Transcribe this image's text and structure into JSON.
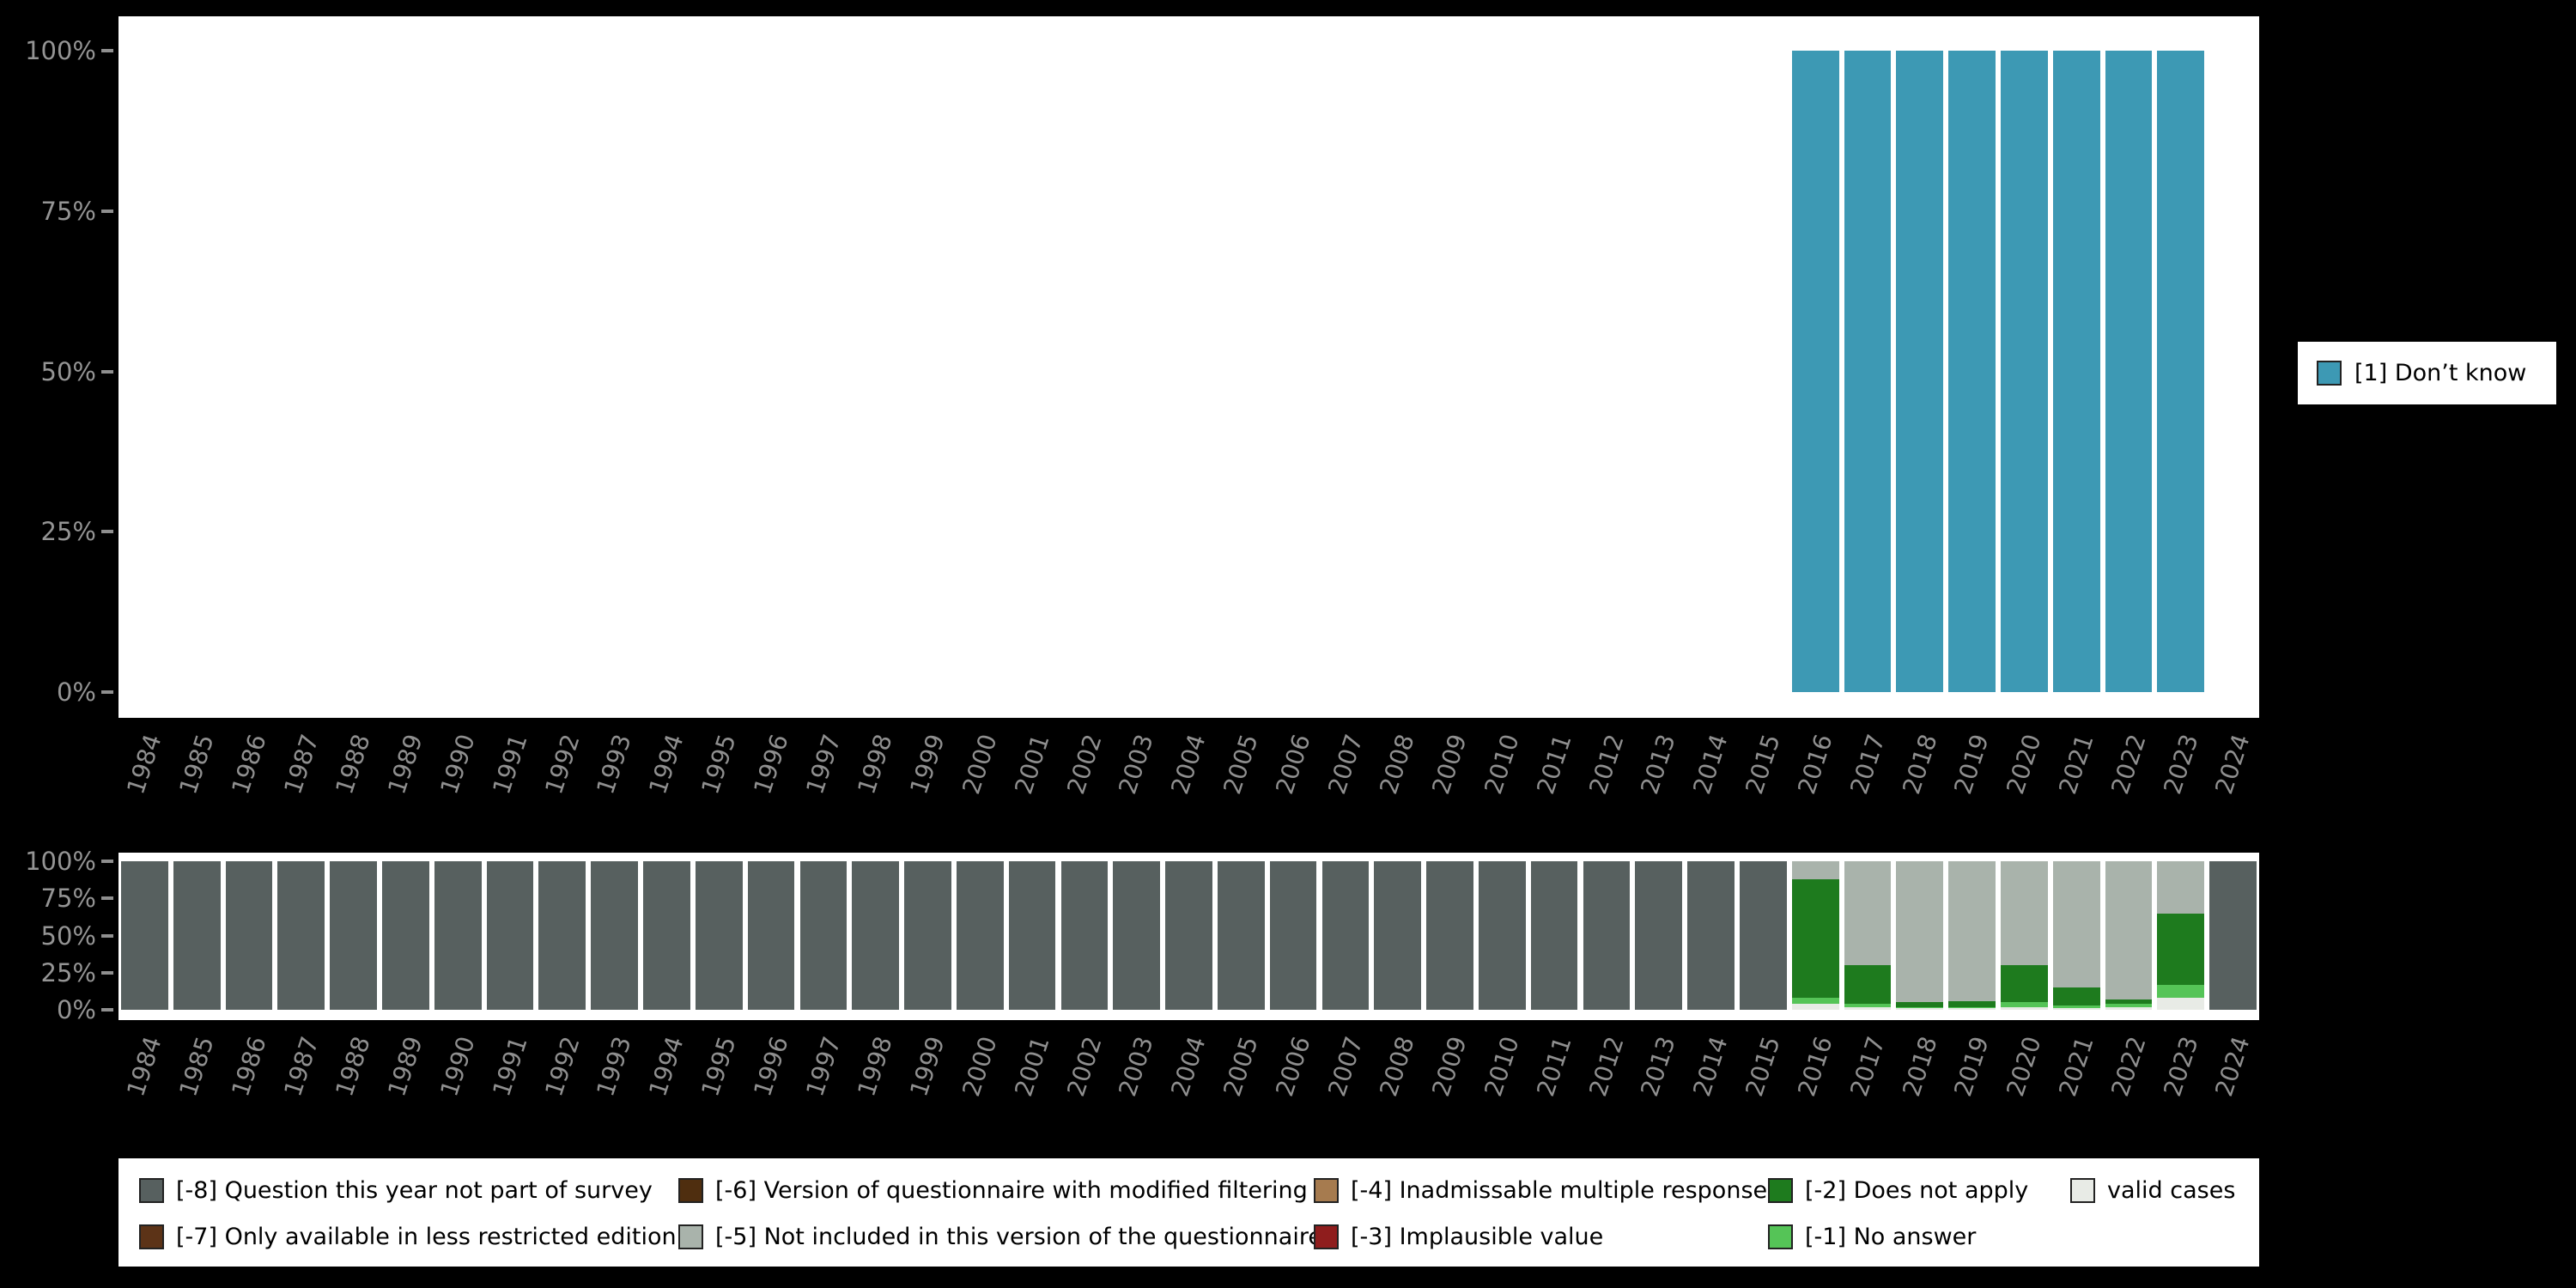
{
  "page": {
    "background": "#000000",
    "plot_background": "#ffffff"
  },
  "right_legend": {
    "items": [
      {
        "label": "[1] Don’t know",
        "color": "#3D99B4"
      }
    ]
  },
  "bottom_legend": {
    "columns": [
      {
        "items": [
          {
            "label": "[-8] Question this year not part of survey",
            "color": "#57605F"
          },
          {
            "label": "[-7] Only available in less restricted edition",
            "color": "#5C3317"
          }
        ]
      },
      {
        "items": [
          {
            "label": "[-6] Version of questionnaire with modified filtering",
            "color": "#4F2E0F"
          },
          {
            "label": "[-5] Not included in this version of the questionnaire",
            "color": "#A9B3AB"
          }
        ]
      },
      {
        "items": [
          {
            "label": "[-4] Inadmissable multiple response",
            "color": "#A67B4F"
          },
          {
            "label": "[-3] Implausible value",
            "color": "#8F1D1D"
          }
        ]
      },
      {
        "items": [
          {
            "label": "[-2] Does not apply",
            "color": "#1E7B1E"
          },
          {
            "label": "[-1] No answer",
            "color": "#55C457"
          }
        ]
      },
      {
        "items": [
          {
            "label": "valid cases",
            "color": "#E8EBE6"
          }
        ]
      }
    ]
  },
  "chart_data": [
    {
      "type": "bar",
      "stacked": true,
      "title": "",
      "xlabel": "",
      "ylabel": "",
      "ylim": [
        0,
        100
      ],
      "grid": false,
      "legend_position": "right",
      "y_ticks": [
        0,
        25,
        50,
        75,
        100
      ],
      "y_tick_labels": [
        "0%",
        "25%",
        "50%",
        "75%",
        "100%"
      ],
      "categories": [
        "1984",
        "1985",
        "1986",
        "1987",
        "1988",
        "1989",
        "1990",
        "1991",
        "1992",
        "1993",
        "1994",
        "1995",
        "1996",
        "1997",
        "1998",
        "1999",
        "2000",
        "2001",
        "2002",
        "2003",
        "2004",
        "2005",
        "2006",
        "2007",
        "2008",
        "2009",
        "2010",
        "2011",
        "2012",
        "2013",
        "2014",
        "2015",
        "2016",
        "2017",
        "2018",
        "2019",
        "2020",
        "2021",
        "2022",
        "2023",
        "2024"
      ],
      "series": [
        {
          "name": "[1] Don’t know",
          "color": "#3D99B4",
          "values": [
            0,
            0,
            0,
            0,
            0,
            0,
            0,
            0,
            0,
            0,
            0,
            0,
            0,
            0,
            0,
            0,
            0,
            0,
            0,
            0,
            0,
            0,
            0,
            0,
            0,
            0,
            0,
            0,
            0,
            0,
            0,
            0,
            100,
            100,
            100,
            100,
            100,
            100,
            100,
            100,
            0
          ]
        }
      ]
    },
    {
      "type": "bar",
      "stacked": true,
      "title": "",
      "xlabel": "",
      "ylabel": "",
      "ylim": [
        0,
        100
      ],
      "grid": false,
      "legend_position": "bottom",
      "y_ticks": [
        0,
        25,
        50,
        75,
        100
      ],
      "y_tick_labels": [
        "0%",
        "25%",
        "50%",
        "75%",
        "100%"
      ],
      "categories": [
        "1984",
        "1985",
        "1986",
        "1987",
        "1988",
        "1989",
        "1990",
        "1991",
        "1992",
        "1993",
        "1994",
        "1995",
        "1996",
        "1997",
        "1998",
        "1999",
        "2000",
        "2001",
        "2002",
        "2003",
        "2004",
        "2005",
        "2006",
        "2007",
        "2008",
        "2009",
        "2010",
        "2011",
        "2012",
        "2013",
        "2014",
        "2015",
        "2016",
        "2017",
        "2018",
        "2019",
        "2020",
        "2021",
        "2022",
        "2023",
        "2024"
      ],
      "series": [
        {
          "name": "valid cases",
          "color": "#E8EBE6",
          "values": [
            0,
            0,
            0,
            0,
            0,
            0,
            0,
            0,
            0,
            0,
            0,
            0,
            0,
            0,
            0,
            0,
            0,
            0,
            0,
            0,
            0,
            0,
            0,
            0,
            0,
            0,
            0,
            0,
            0,
            0,
            0,
            0,
            4,
            2,
            1,
            1,
            2,
            1,
            2,
            8,
            0
          ]
        },
        {
          "name": "[-1] No answer",
          "color": "#55C457",
          "values": [
            0,
            0,
            0,
            0,
            0,
            0,
            0,
            0,
            0,
            0,
            0,
            0,
            0,
            0,
            0,
            0,
            0,
            0,
            0,
            0,
            0,
            0,
            0,
            0,
            0,
            0,
            0,
            0,
            0,
            0,
            0,
            0,
            4,
            2,
            1,
            1,
            3,
            2,
            2,
            9,
            0
          ]
        },
        {
          "name": "[-2] Does not apply",
          "color": "#1E7B1E",
          "values": [
            0,
            0,
            0,
            0,
            0,
            0,
            0,
            0,
            0,
            0,
            0,
            0,
            0,
            0,
            0,
            0,
            0,
            0,
            0,
            0,
            0,
            0,
            0,
            0,
            0,
            0,
            0,
            0,
            0,
            0,
            0,
            0,
            80,
            26,
            3,
            4,
            25,
            12,
            3,
            48,
            0
          ]
        },
        {
          "name": "[-3] Implausible value",
          "color": "#8F1D1D",
          "values": [
            0,
            0,
            0,
            0,
            0,
            0,
            0,
            0,
            0,
            0,
            0,
            0,
            0,
            0,
            0,
            0,
            0,
            0,
            0,
            0,
            0,
            0,
            0,
            0,
            0,
            0,
            0,
            0,
            0,
            0,
            0,
            0,
            0,
            0,
            0,
            0,
            0,
            0,
            0,
            0,
            0
          ]
        },
        {
          "name": "[-4] Inadmissable multiple response",
          "color": "#A67B4F",
          "values": [
            0,
            0,
            0,
            0,
            0,
            0,
            0,
            0,
            0,
            0,
            0,
            0,
            0,
            0,
            0,
            0,
            0,
            0,
            0,
            0,
            0,
            0,
            0,
            0,
            0,
            0,
            0,
            0,
            0,
            0,
            0,
            0,
            0,
            0,
            0,
            0,
            0,
            0,
            0,
            0,
            0
          ]
        },
        {
          "name": "[-5] Not included in this version of the questionnaire",
          "color": "#A9B3AB",
          "values": [
            0,
            0,
            0,
            0,
            0,
            0,
            0,
            0,
            0,
            0,
            0,
            0,
            0,
            0,
            0,
            0,
            0,
            0,
            0,
            0,
            0,
            0,
            0,
            0,
            0,
            0,
            0,
            0,
            0,
            0,
            0,
            0,
            12,
            70,
            95,
            94,
            70,
            85,
            93,
            35,
            0
          ]
        },
        {
          "name": "[-6] Version of questionnaire with modified filtering",
          "color": "#4F2E0F",
          "values": [
            0,
            0,
            0,
            0,
            0,
            0,
            0,
            0,
            0,
            0,
            0,
            0,
            0,
            0,
            0,
            0,
            0,
            0,
            0,
            0,
            0,
            0,
            0,
            0,
            0,
            0,
            0,
            0,
            0,
            0,
            0,
            0,
            0,
            0,
            0,
            0,
            0,
            0,
            0,
            0,
            0
          ]
        },
        {
          "name": "[-7] Only available in less restricted edition",
          "color": "#5C3317",
          "values": [
            0,
            0,
            0,
            0,
            0,
            0,
            0,
            0,
            0,
            0,
            0,
            0,
            0,
            0,
            0,
            0,
            0,
            0,
            0,
            0,
            0,
            0,
            0,
            0,
            0,
            0,
            0,
            0,
            0,
            0,
            0,
            0,
            0,
            0,
            0,
            0,
            0,
            0,
            0,
            0,
            0
          ]
        },
        {
          "name": "[-8] Question this year not part of survey",
          "color": "#57605F",
          "values": [
            100,
            100,
            100,
            100,
            100,
            100,
            100,
            100,
            100,
            100,
            100,
            100,
            100,
            100,
            100,
            100,
            100,
            100,
            100,
            100,
            100,
            100,
            100,
            100,
            100,
            100,
            100,
            100,
            100,
            100,
            100,
            100,
            0,
            0,
            0,
            0,
            0,
            0,
            0,
            0,
            100
          ]
        }
      ]
    }
  ]
}
